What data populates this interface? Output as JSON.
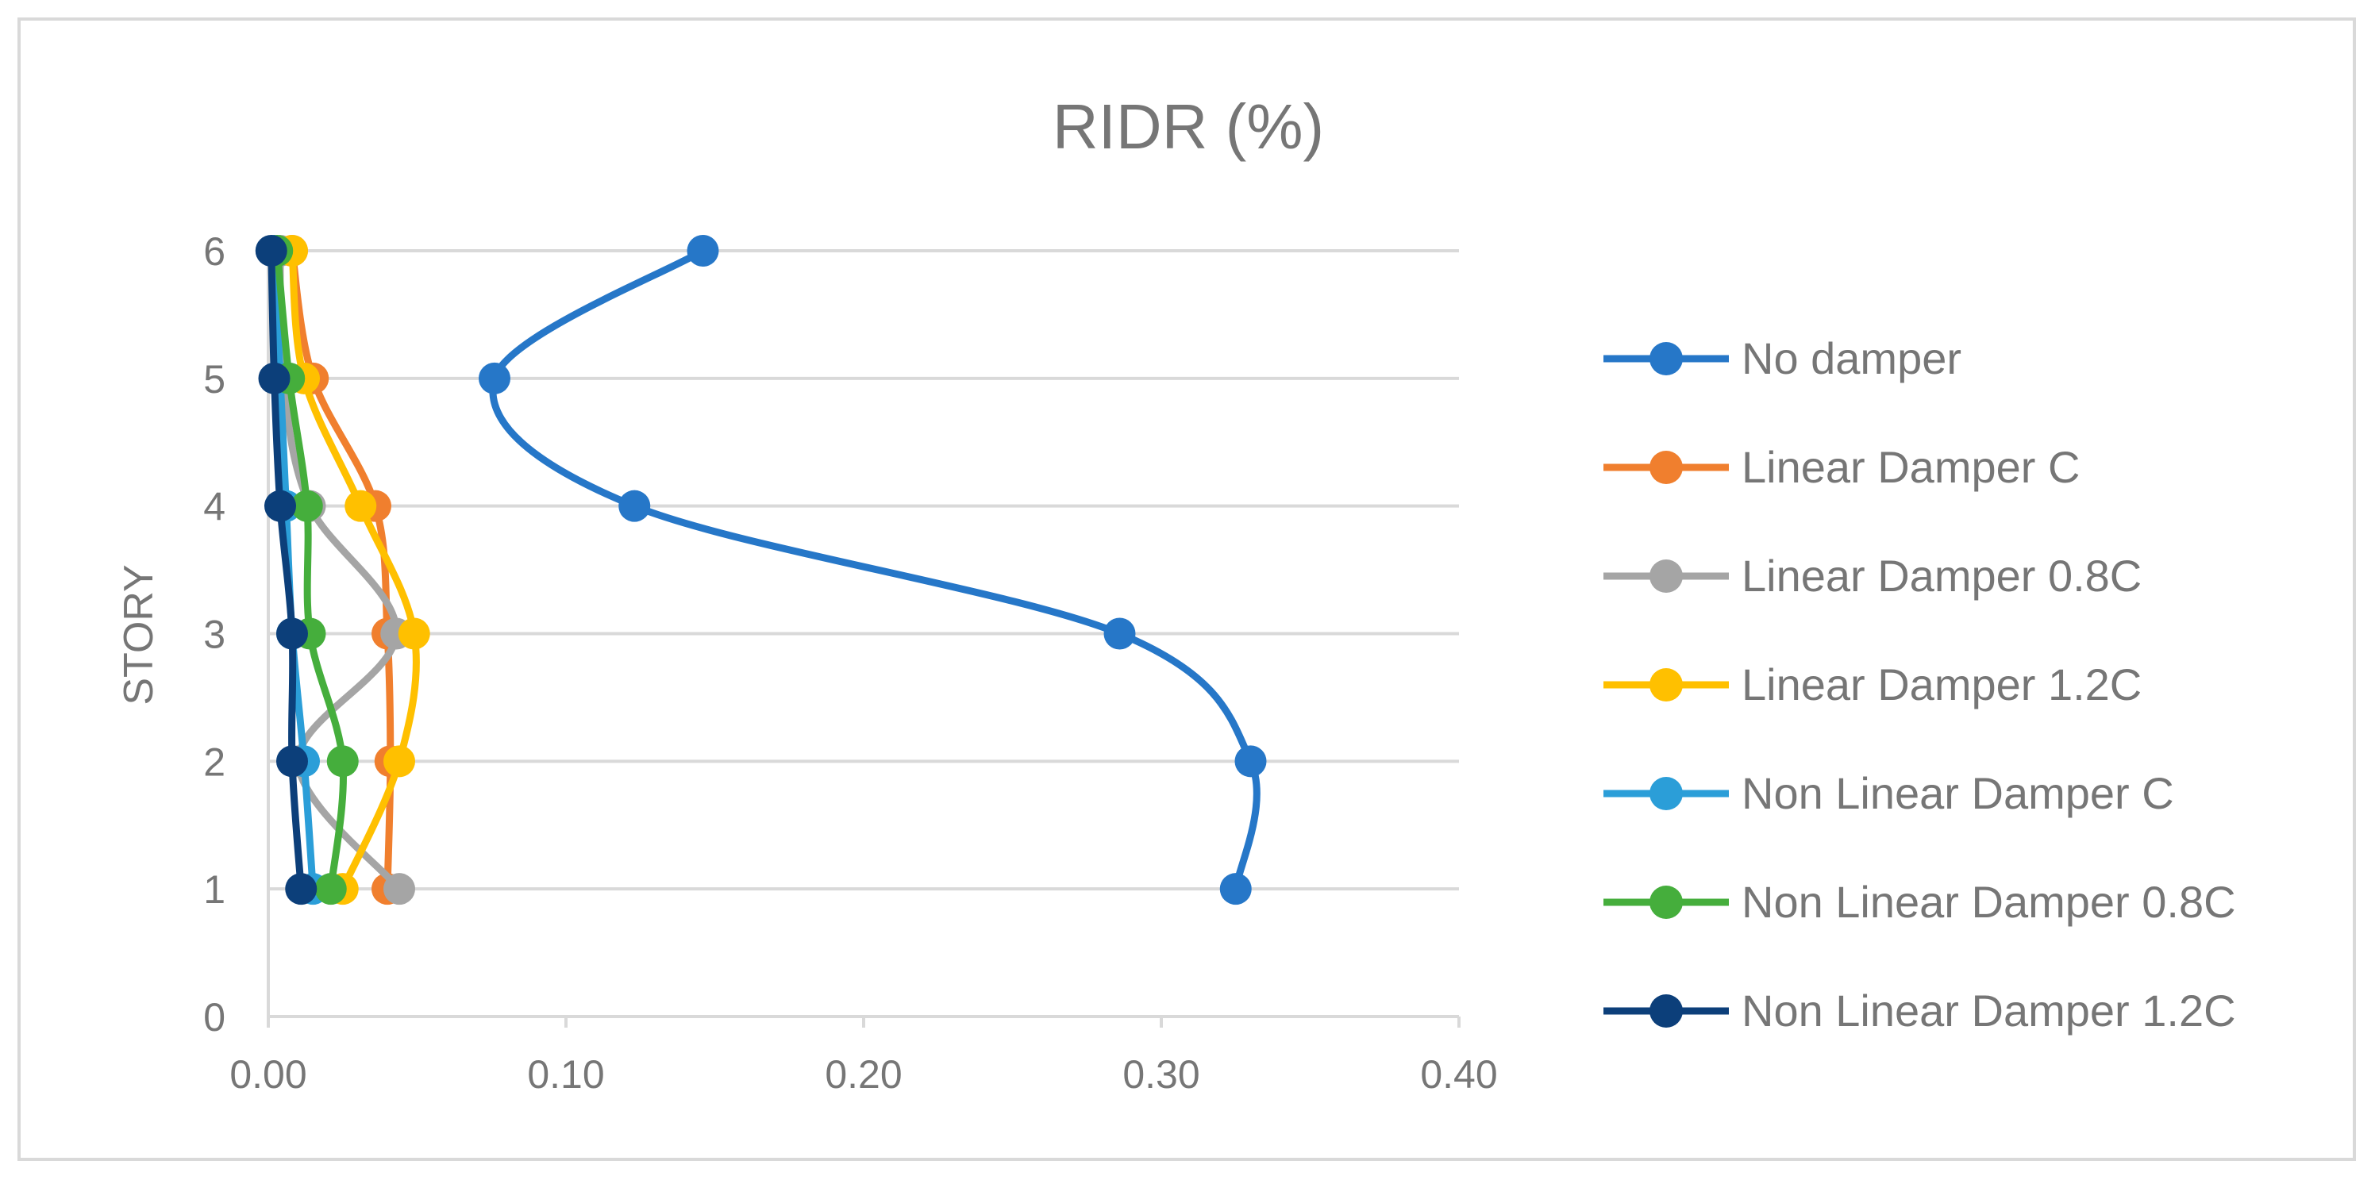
{
  "chart_data": {
    "type": "line",
    "title": "RIDR (%)",
    "xlabel": "",
    "ylabel": "STORY",
    "xlim": [
      0,
      0.4
    ],
    "ylim": [
      0,
      6
    ],
    "x_ticks": [
      "0.00",
      "0.10",
      "0.20",
      "0.30",
      "0.40"
    ],
    "y_ticks": [
      "0",
      "1",
      "2",
      "3",
      "4",
      "5",
      "6"
    ],
    "grid": "horizontal",
    "legend_position": "right",
    "smooth": true,
    "series": [
      {
        "name": "No damper",
        "color": "#2677c8",
        "points": [
          [
            0.325,
            1
          ],
          [
            0.33,
            2
          ],
          [
            0.286,
            3
          ],
          [
            0.123,
            4
          ],
          [
            0.076,
            5
          ],
          [
            0.146,
            6
          ]
        ]
      },
      {
        "name": "Linear Damper C",
        "color": "#f07f2e",
        "points": [
          [
            0.04,
            1
          ],
          [
            0.041,
            2
          ],
          [
            0.04,
            3
          ],
          [
            0.036,
            4
          ],
          [
            0.015,
            5
          ],
          [
            0.008,
            6
          ]
        ]
      },
      {
        "name": "Linear Damper 0.8C",
        "color": "#a5a5a5",
        "points": [
          [
            0.044,
            1
          ],
          [
            0.01,
            2
          ],
          [
            0.043,
            3
          ],
          [
            0.014,
            4
          ],
          [
            0.005,
            5
          ],
          [
            0.004,
            6
          ]
        ]
      },
      {
        "name": "Linear Damper 1.2C",
        "color": "#ffc000",
        "points": [
          [
            0.025,
            1
          ],
          [
            0.044,
            2
          ],
          [
            0.049,
            3
          ],
          [
            0.031,
            4
          ],
          [
            0.012,
            5
          ],
          [
            0.008,
            6
          ]
        ]
      },
      {
        "name": "Non Linear Damper C",
        "color": "#2b9ed8",
        "points": [
          [
            0.015,
            1
          ],
          [
            0.012,
            2
          ],
          [
            0.008,
            3
          ],
          [
            0.006,
            4
          ],
          [
            0.004,
            5
          ],
          [
            0.002,
            6
          ]
        ]
      },
      {
        "name": "Non Linear Damper 0.8C",
        "color": "#45ae3c",
        "points": [
          [
            0.021,
            1
          ],
          [
            0.025,
            2
          ],
          [
            0.014,
            3
          ],
          [
            0.013,
            4
          ],
          [
            0.007,
            5
          ],
          [
            0.003,
            6
          ]
        ]
      },
      {
        "name": "Non Linear Damper 1.2C",
        "color": "#0c3f7a",
        "points": [
          [
            0.011,
            1
          ],
          [
            0.008,
            2
          ],
          [
            0.008,
            3
          ],
          [
            0.004,
            4
          ],
          [
            0.002,
            5
          ],
          [
            0.001,
            6
          ]
        ]
      }
    ]
  }
}
